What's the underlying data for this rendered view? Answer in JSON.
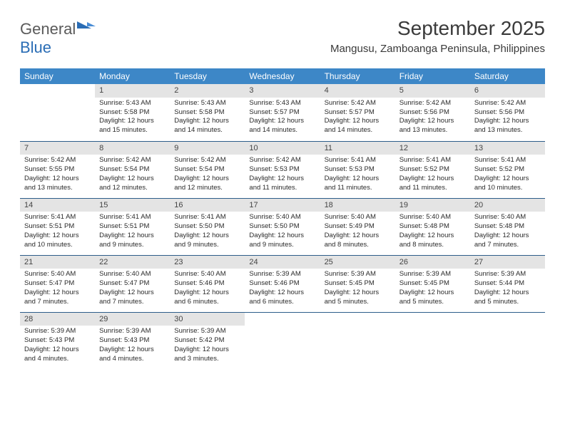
{
  "brand": {
    "part1": "General",
    "part2": "Blue"
  },
  "title": "September 2025",
  "subtitle": "Mangusu, Zamboanga Peninsula, Philippines",
  "colors": {
    "headerBg": "#3d87c7",
    "dayStripe": "#e4e4e4",
    "rowDivider": "#2d5d8a"
  },
  "dayHeaders": [
    "Sunday",
    "Monday",
    "Tuesday",
    "Wednesday",
    "Thursday",
    "Friday",
    "Saturday"
  ],
  "weeks": [
    [
      null,
      {
        "n": "1",
        "sr": "Sunrise: 5:43 AM",
        "ss": "Sunset: 5:58 PM",
        "d1": "Daylight: 12 hours",
        "d2": "and 15 minutes."
      },
      {
        "n": "2",
        "sr": "Sunrise: 5:43 AM",
        "ss": "Sunset: 5:58 PM",
        "d1": "Daylight: 12 hours",
        "d2": "and 14 minutes."
      },
      {
        "n": "3",
        "sr": "Sunrise: 5:43 AM",
        "ss": "Sunset: 5:57 PM",
        "d1": "Daylight: 12 hours",
        "d2": "and 14 minutes."
      },
      {
        "n": "4",
        "sr": "Sunrise: 5:42 AM",
        "ss": "Sunset: 5:57 PM",
        "d1": "Daylight: 12 hours",
        "d2": "and 14 minutes."
      },
      {
        "n": "5",
        "sr": "Sunrise: 5:42 AM",
        "ss": "Sunset: 5:56 PM",
        "d1": "Daylight: 12 hours",
        "d2": "and 13 minutes."
      },
      {
        "n": "6",
        "sr": "Sunrise: 5:42 AM",
        "ss": "Sunset: 5:56 PM",
        "d1": "Daylight: 12 hours",
        "d2": "and 13 minutes."
      }
    ],
    [
      {
        "n": "7",
        "sr": "Sunrise: 5:42 AM",
        "ss": "Sunset: 5:55 PM",
        "d1": "Daylight: 12 hours",
        "d2": "and 13 minutes."
      },
      {
        "n": "8",
        "sr": "Sunrise: 5:42 AM",
        "ss": "Sunset: 5:54 PM",
        "d1": "Daylight: 12 hours",
        "d2": "and 12 minutes."
      },
      {
        "n": "9",
        "sr": "Sunrise: 5:42 AM",
        "ss": "Sunset: 5:54 PM",
        "d1": "Daylight: 12 hours",
        "d2": "and 12 minutes."
      },
      {
        "n": "10",
        "sr": "Sunrise: 5:42 AM",
        "ss": "Sunset: 5:53 PM",
        "d1": "Daylight: 12 hours",
        "d2": "and 11 minutes."
      },
      {
        "n": "11",
        "sr": "Sunrise: 5:41 AM",
        "ss": "Sunset: 5:53 PM",
        "d1": "Daylight: 12 hours",
        "d2": "and 11 minutes."
      },
      {
        "n": "12",
        "sr": "Sunrise: 5:41 AM",
        "ss": "Sunset: 5:52 PM",
        "d1": "Daylight: 12 hours",
        "d2": "and 11 minutes."
      },
      {
        "n": "13",
        "sr": "Sunrise: 5:41 AM",
        "ss": "Sunset: 5:52 PM",
        "d1": "Daylight: 12 hours",
        "d2": "and 10 minutes."
      }
    ],
    [
      {
        "n": "14",
        "sr": "Sunrise: 5:41 AM",
        "ss": "Sunset: 5:51 PM",
        "d1": "Daylight: 12 hours",
        "d2": "and 10 minutes."
      },
      {
        "n": "15",
        "sr": "Sunrise: 5:41 AM",
        "ss": "Sunset: 5:51 PM",
        "d1": "Daylight: 12 hours",
        "d2": "and 9 minutes."
      },
      {
        "n": "16",
        "sr": "Sunrise: 5:41 AM",
        "ss": "Sunset: 5:50 PM",
        "d1": "Daylight: 12 hours",
        "d2": "and 9 minutes."
      },
      {
        "n": "17",
        "sr": "Sunrise: 5:40 AM",
        "ss": "Sunset: 5:50 PM",
        "d1": "Daylight: 12 hours",
        "d2": "and 9 minutes."
      },
      {
        "n": "18",
        "sr": "Sunrise: 5:40 AM",
        "ss": "Sunset: 5:49 PM",
        "d1": "Daylight: 12 hours",
        "d2": "and 8 minutes."
      },
      {
        "n": "19",
        "sr": "Sunrise: 5:40 AM",
        "ss": "Sunset: 5:48 PM",
        "d1": "Daylight: 12 hours",
        "d2": "and 8 minutes."
      },
      {
        "n": "20",
        "sr": "Sunrise: 5:40 AM",
        "ss": "Sunset: 5:48 PM",
        "d1": "Daylight: 12 hours",
        "d2": "and 7 minutes."
      }
    ],
    [
      {
        "n": "21",
        "sr": "Sunrise: 5:40 AM",
        "ss": "Sunset: 5:47 PM",
        "d1": "Daylight: 12 hours",
        "d2": "and 7 minutes."
      },
      {
        "n": "22",
        "sr": "Sunrise: 5:40 AM",
        "ss": "Sunset: 5:47 PM",
        "d1": "Daylight: 12 hours",
        "d2": "and 7 minutes."
      },
      {
        "n": "23",
        "sr": "Sunrise: 5:40 AM",
        "ss": "Sunset: 5:46 PM",
        "d1": "Daylight: 12 hours",
        "d2": "and 6 minutes."
      },
      {
        "n": "24",
        "sr": "Sunrise: 5:39 AM",
        "ss": "Sunset: 5:46 PM",
        "d1": "Daylight: 12 hours",
        "d2": "and 6 minutes."
      },
      {
        "n": "25",
        "sr": "Sunrise: 5:39 AM",
        "ss": "Sunset: 5:45 PM",
        "d1": "Daylight: 12 hours",
        "d2": "and 5 minutes."
      },
      {
        "n": "26",
        "sr": "Sunrise: 5:39 AM",
        "ss": "Sunset: 5:45 PM",
        "d1": "Daylight: 12 hours",
        "d2": "and 5 minutes."
      },
      {
        "n": "27",
        "sr": "Sunrise: 5:39 AM",
        "ss": "Sunset: 5:44 PM",
        "d1": "Daylight: 12 hours",
        "d2": "and 5 minutes."
      }
    ],
    [
      {
        "n": "28",
        "sr": "Sunrise: 5:39 AM",
        "ss": "Sunset: 5:43 PM",
        "d1": "Daylight: 12 hours",
        "d2": "and 4 minutes."
      },
      {
        "n": "29",
        "sr": "Sunrise: 5:39 AM",
        "ss": "Sunset: 5:43 PM",
        "d1": "Daylight: 12 hours",
        "d2": "and 4 minutes."
      },
      {
        "n": "30",
        "sr": "Sunrise: 5:39 AM",
        "ss": "Sunset: 5:42 PM",
        "d1": "Daylight: 12 hours",
        "d2": "and 3 minutes."
      },
      null,
      null,
      null,
      null
    ]
  ]
}
